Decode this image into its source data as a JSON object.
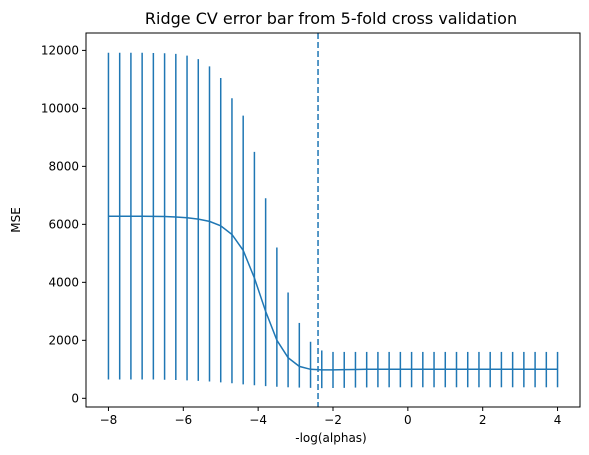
{
  "chart_data": {
    "type": "line",
    "title": "Ridge CV error bar from 5-fold cross validation",
    "xlabel": "-log(alphas)",
    "ylabel": "MSE",
    "xlim": [
      -8.6,
      4.6
    ],
    "ylim": [
      -300,
      12600
    ],
    "xticks": [
      -8,
      -6,
      -4,
      -2,
      0,
      2,
      4
    ],
    "yticks": [
      0,
      2000,
      4000,
      6000,
      8000,
      10000,
      12000
    ],
    "grid": false,
    "legend": null,
    "vline_x": -2.4,
    "colors": {
      "series": "#1f77b4"
    },
    "series": [
      {
        "x": [
          -8,
          -7.7,
          -7.4,
          -7.1,
          -6.8,
          -6.5,
          -6.2,
          -5.9,
          -5.6,
          -5.3,
          -5.0,
          -4.7,
          -4.4,
          -4.1,
          -3.8,
          -3.5,
          -3.2,
          -2.9,
          -2.6,
          -2.3,
          -2.0,
          -1.7,
          -1.4,
          -1.1,
          -0.8,
          -0.5,
          -0.2,
          0.1,
          0.4,
          0.7,
          1.0,
          1.3,
          1.6,
          1.9,
          2.2,
          2.5,
          2.8,
          3.1,
          3.4,
          3.7,
          4.0
        ],
        "y": [
          6280,
          6280,
          6280,
          6280,
          6275,
          6270,
          6255,
          6230,
          6180,
          6100,
          5950,
          5650,
          5100,
          4150,
          3000,
          2000,
          1400,
          1100,
          1000,
          980,
          980,
          990,
          995,
          1000,
          1000,
          1000,
          1000,
          1000,
          1000,
          1000,
          1000,
          1000,
          1000,
          1000,
          1000,
          1000,
          1000,
          1000,
          1000,
          1000,
          1000
        ],
        "err_low": [
          650,
          650,
          650,
          650,
          650,
          640,
          630,
          620,
          600,
          580,
          550,
          520,
          480,
          450,
          420,
          400,
          380,
          370,
          360,
          350,
          355,
          360,
          370,
          375,
          380,
          380,
          380,
          380,
          380,
          380,
          380,
          380,
          380,
          380,
          380,
          380,
          380,
          380,
          380,
          380,
          380
        ],
        "err_high": [
          11920,
          11920,
          11920,
          11920,
          11910,
          11900,
          11880,
          11820,
          11700,
          11450,
          11050,
          10350,
          9750,
          8500,
          6900,
          5200,
          3650,
          2600,
          1950,
          1650,
          1600,
          1600,
          1600,
          1600,
          1600,
          1600,
          1600,
          1600,
          1600,
          1600,
          1600,
          1600,
          1600,
          1600,
          1600,
          1600,
          1600,
          1600,
          1600,
          1600,
          1600
        ]
      }
    ]
  }
}
